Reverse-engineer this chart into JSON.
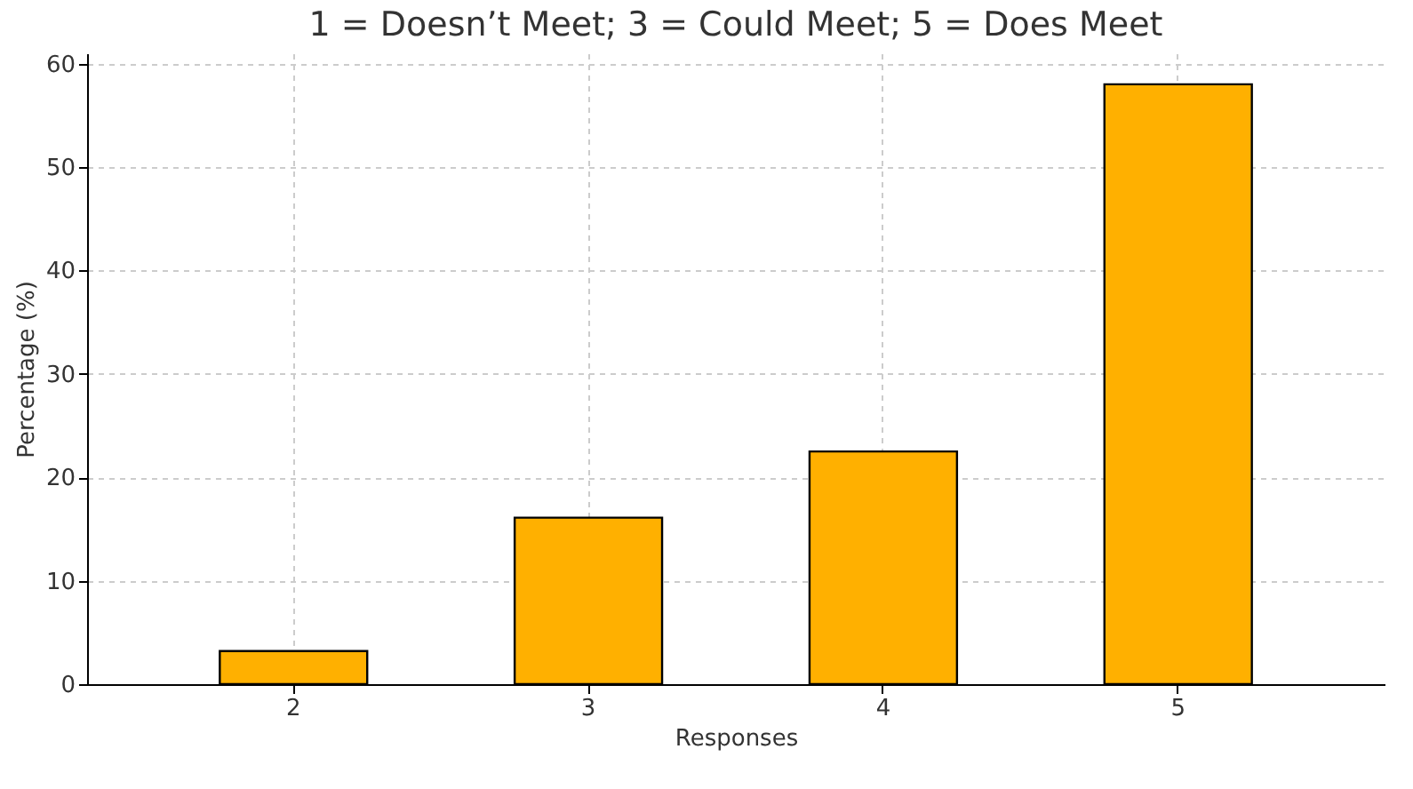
{
  "chart_data": {
    "type": "bar",
    "title": "1 = Doesn’t Meet; 3 = Could Meet; 5 = Does Meet",
    "xlabel": "Responses",
    "ylabel": "Percentage (%)",
    "categories": [
      "2",
      "3",
      "4",
      "5"
    ],
    "values": [
      3.2,
      16.1,
      22.5,
      58.0
    ],
    "color": "#ffb000",
    "ylim": [
      0,
      61
    ],
    "yticks": [
      0,
      10,
      20,
      30,
      40,
      50,
      60
    ],
    "grid": true
  }
}
